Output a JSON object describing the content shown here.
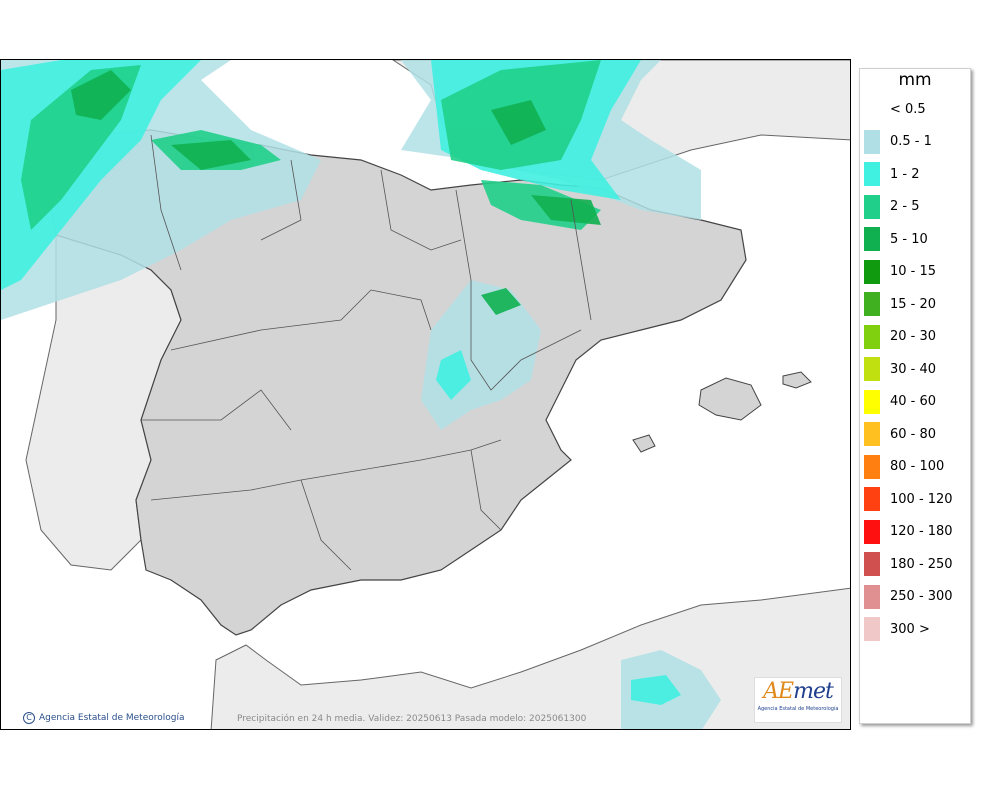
{
  "legend": {
    "unit": "mm",
    "items": [
      {
        "label": "< 0.5",
        "color": "#ffffff"
      },
      {
        "label": "0.5 - 1",
        "color": "#b0e0e6"
      },
      {
        "label": "1 - 2",
        "color": "#40f0e0"
      },
      {
        "label": "2 - 5",
        "color": "#20d08a"
      },
      {
        "label": "5 - 10",
        "color": "#10b050"
      },
      {
        "label": "10 - 15",
        "color": "#109a10"
      },
      {
        "label": "15 - 20",
        "color": "#40b020"
      },
      {
        "label": "20 - 30",
        "color": "#80d010"
      },
      {
        "label": "30 - 40",
        "color": "#c0e010"
      },
      {
        "label": "40 - 60",
        "color": "#ffff00"
      },
      {
        "label": "60 - 80",
        "color": "#ffc020"
      },
      {
        "label": "80 - 100",
        "color": "#ff8010"
      },
      {
        "label": "100 - 120",
        "color": "#ff4010"
      },
      {
        "label": "120 - 180",
        "color": "#ff1010"
      },
      {
        "label": "180 - 250",
        "color": "#d05050"
      },
      {
        "label": "250 - 300",
        "color": "#e09090"
      },
      {
        "label": "300 >",
        "color": "#f0c8c8"
      }
    ]
  },
  "footer": {
    "credit": "Agencia Estatal de Meteorología",
    "validity": "Precipitación en 24 h media. Validez: 20250613 Pasada modelo: 2025061300"
  },
  "logo": {
    "wordmark_a": "AE",
    "wordmark_b": "met",
    "subtitle": "Agencia Estatal de Meteorología"
  },
  "colors": {
    "sea": "#ffffff",
    "land": "#d4d4d4",
    "foreign_land": "#ececec"
  }
}
